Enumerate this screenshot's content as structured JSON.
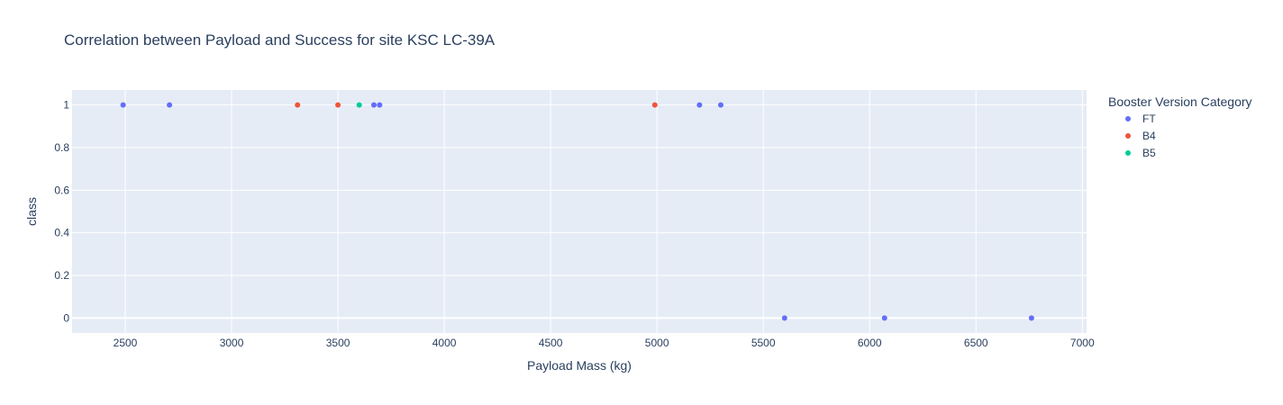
{
  "chart_data": {
    "type": "scatter",
    "title": "Correlation between Payload and Success for site KSC LC-39A",
    "xlabel": "Payload Mass (kg)",
    "ylabel": "class",
    "xlim": [
      2250,
      7020
    ],
    "ylim": [
      -0.07,
      1.07
    ],
    "xticks": [
      2500,
      3000,
      3500,
      4000,
      4500,
      5000,
      5500,
      6000,
      6500,
      7000
    ],
    "yticks": [
      0,
      0.2,
      0.4,
      0.6,
      0.8,
      1
    ],
    "ytick_labels": [
      "0",
      "0.2",
      "0.4",
      "0.6",
      "0.8",
      "1"
    ],
    "grid": true,
    "legend": {
      "title": "Booster Version Category",
      "placement": "right"
    },
    "series": [
      {
        "name": "FT",
        "color": "#636efa",
        "x": [
          2490,
          2708,
          3669,
          3696,
          5200,
          5300,
          5600,
          6070,
          6761
        ],
        "y": [
          1,
          1,
          1,
          1,
          1,
          1,
          0,
          0,
          0
        ]
      },
      {
        "name": "B4",
        "color": "#ef553b",
        "x": [
          3310,
          3500,
          4990
        ],
        "y": [
          1,
          1,
          1
        ]
      },
      {
        "name": "B5",
        "color": "#00cc96",
        "x": [
          3600
        ],
        "y": [
          1
        ]
      }
    ]
  },
  "colors": {
    "plot_bg": "#e5ecf6",
    "grid": "#ffffff",
    "text": "#2a3f5f"
  }
}
